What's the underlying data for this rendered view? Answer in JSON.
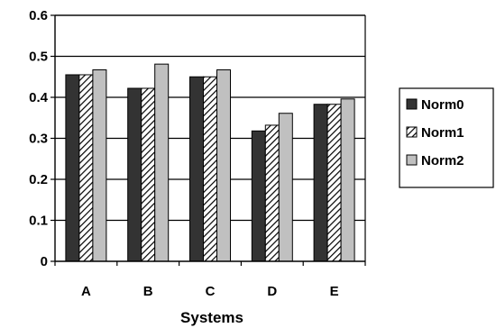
{
  "chart_data": {
    "type": "bar",
    "categories": [
      "A",
      "B",
      "C",
      "D",
      "E"
    ],
    "series": [
      {
        "name": "Norm0",
        "values": [
          0.455,
          0.422,
          0.45,
          0.318,
          0.383
        ],
        "color": "#333333",
        "pattern": "solid"
      },
      {
        "name": "Norm1",
        "values": [
          0.455,
          0.422,
          0.45,
          0.332,
          0.383
        ],
        "color": "#ffffff",
        "pattern": "diagonal-hatch"
      },
      {
        "name": "Norm2",
        "values": [
          0.467,
          0.481,
          0.467,
          0.361,
          0.396
        ],
        "color": "#c0c0c0",
        "pattern": "solid"
      }
    ],
    "title": "",
    "xlabel": "Systems",
    "ylabel": "",
    "ylim": [
      0,
      0.6
    ],
    "yticks": [
      "0",
      "0.1",
      "0.2",
      "0.3",
      "0.4",
      "0.5",
      "0.6"
    ],
    "ytick_values": [
      0,
      0.1,
      0.2,
      0.3,
      0.4,
      0.5,
      0.6
    ],
    "grid": "horizontal",
    "legend_position": "right"
  }
}
